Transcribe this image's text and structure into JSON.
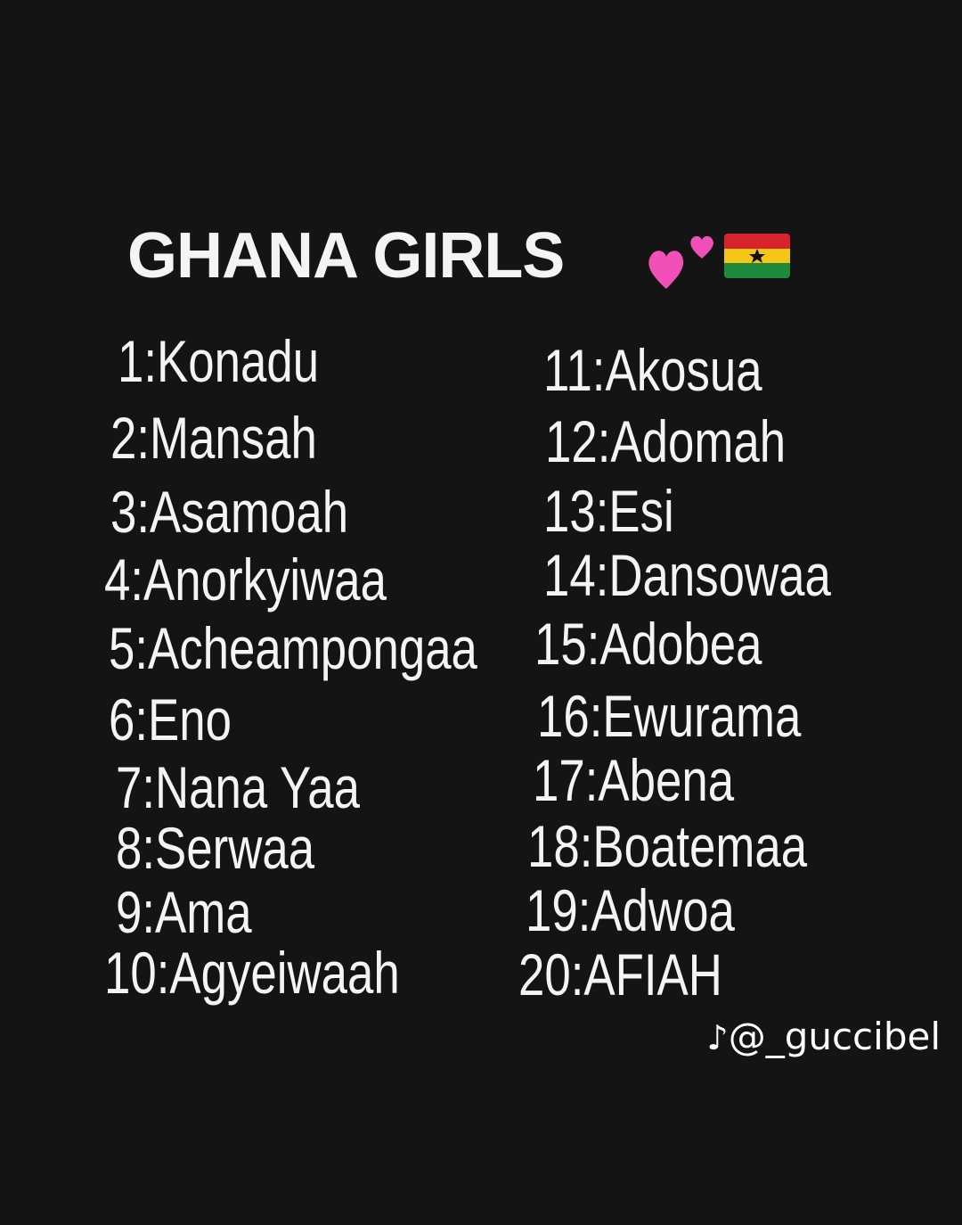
{
  "title": "GHANA GIRLS",
  "title_emojis": [
    "two-hearts-icon",
    "ghana-flag-icon"
  ],
  "colors": {
    "background": "#141414",
    "text": "#f4f4f4",
    "hearts": "#f050b8",
    "flag_red": "#d8232a",
    "flag_yellow": "#f5c518",
    "flag_green": "#1f8a3c"
  },
  "names_left": [
    "1:Konadu",
    "2:Mansah",
    "3:Asamoah",
    "4:Anorkyiwaa",
    "5:Acheampongaa",
    "6:Eno",
    "7:Nana Yaa",
    "8:Serwaa",
    "9:Ama",
    "10:Agyeiwaah"
  ],
  "names_right": [
    "11:Akosua",
    "12:Adomah",
    "13:Esi",
    "14:Dansowaa",
    "15:Adobea",
    "16:Ewurama",
    "17:Abena",
    "18:Boatemaa",
    "19:Adwoa",
    "20:AFIAH"
  ],
  "watermark": {
    "icon": "tiktok-icon",
    "handle": "@_guccibel"
  }
}
